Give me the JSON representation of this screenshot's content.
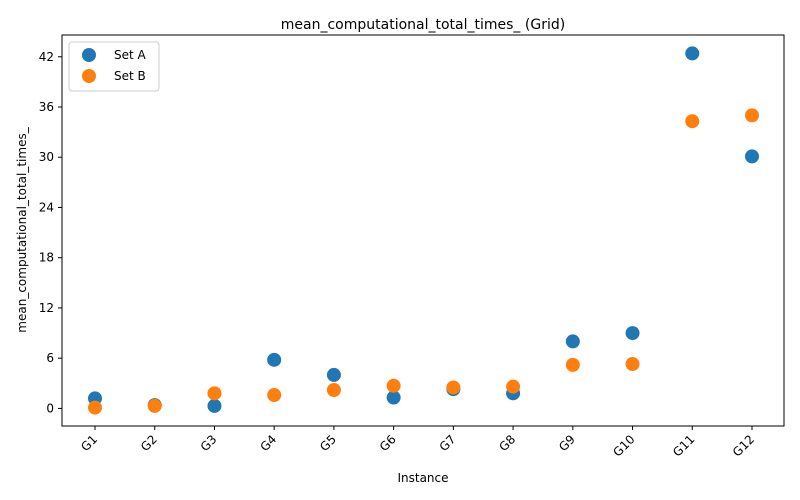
{
  "chart_data": {
    "type": "scatter",
    "title": "mean_computational_total_times_ (Grid)",
    "xlabel": "Instance",
    "ylabel": "mean_computational_total_times_",
    "categories": [
      "G1",
      "G2",
      "G3",
      "G4",
      "G5",
      "G6",
      "G7",
      "G8",
      "G9",
      "G10",
      "G11",
      "G12"
    ],
    "ylim": [
      -2.1,
      44.6
    ],
    "yticks": [
      0,
      6,
      12,
      18,
      24,
      30,
      36,
      42
    ],
    "grid": false,
    "legend_position": "top-left",
    "series": [
      {
        "name": "Set A",
        "color": "#1f77b4",
        "values": [
          1.2,
          0.4,
          0.3,
          5.8,
          4.0,
          1.3,
          2.3,
          1.8,
          8.0,
          9.0,
          42.4,
          30.1
        ]
      },
      {
        "name": "Set B",
        "color": "#ff7f0e",
        "values": [
          0.1,
          0.3,
          1.8,
          1.6,
          2.2,
          2.7,
          2.5,
          2.6,
          5.2,
          5.3,
          34.3,
          35.0
        ]
      }
    ]
  }
}
